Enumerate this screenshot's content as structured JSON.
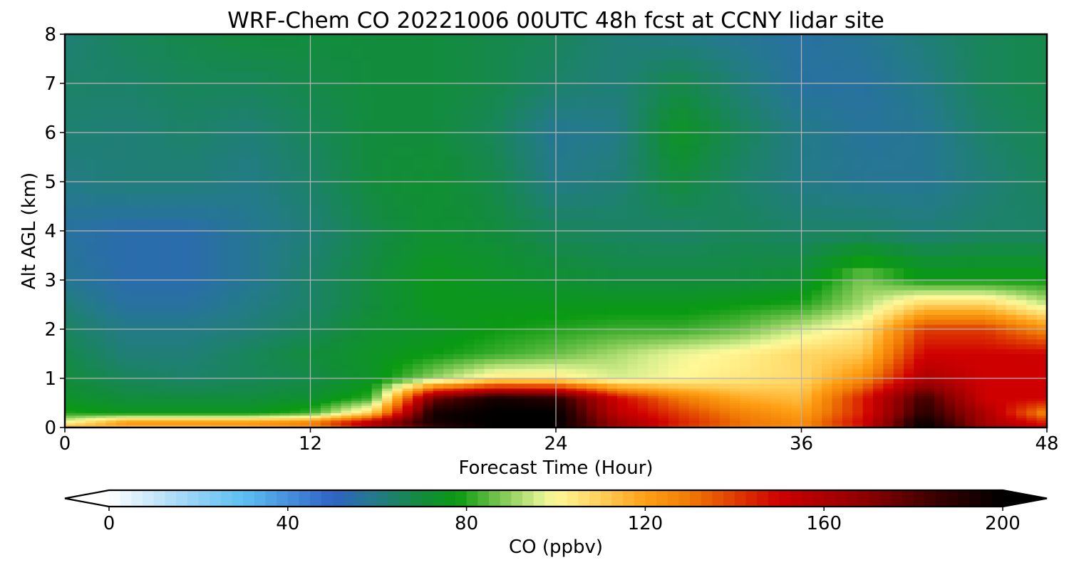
{
  "chart_data": {
    "type": "heatmap",
    "title": "WRF-Chem CO  20221006 00UTC 48h fcst at CCNY lidar site",
    "xlabel": "Forecast Time (Hour)",
    "ylabel": "Alt AGL (km)",
    "xlim": [
      0,
      48
    ],
    "ylim": [
      0,
      8
    ],
    "x_ticks": [
      0,
      12,
      24,
      36,
      48
    ],
    "x_tick_labels": [
      "0",
      "12",
      "24",
      "36",
      "48"
    ],
    "y_ticks": [
      0,
      1,
      2,
      3,
      4,
      5,
      6,
      7,
      8
    ],
    "y_tick_labels": [
      "0",
      "1",
      "2",
      "3",
      "4",
      "5",
      "6",
      "7",
      "8"
    ],
    "grid": true,
    "colorbar": {
      "label": "CO  (ppbv)",
      "range": [
        0,
        200
      ],
      "extend": "both",
      "ticks": [
        0,
        40,
        80,
        120,
        160,
        200
      ],
      "tick_labels": [
        "0",
        "40",
        "80",
        "120",
        "160",
        "200"
      ],
      "colormap": [
        {
          "value": 0,
          "color": "#ffffff"
        },
        {
          "value": 20,
          "color": "#8fd0f5"
        },
        {
          "value": 30,
          "color": "#5ec0f2"
        },
        {
          "value": 50,
          "color": "#2f63c6"
        },
        {
          "value": 60,
          "color": "#237b86"
        },
        {
          "value": 70,
          "color": "#128c3c"
        },
        {
          "value": 78,
          "color": "#0a9a12"
        },
        {
          "value": 88,
          "color": "#7ec853"
        },
        {
          "value": 96,
          "color": "#d8ef8d"
        },
        {
          "value": 100,
          "color": "#fff898"
        },
        {
          "value": 110,
          "color": "#ffd05a"
        },
        {
          "value": 120,
          "color": "#ffa015"
        },
        {
          "value": 130,
          "color": "#f07a05"
        },
        {
          "value": 140,
          "color": "#e03c00"
        },
        {
          "value": 150,
          "color": "#cf0000"
        },
        {
          "value": 170,
          "color": "#8a0000"
        },
        {
          "value": 185,
          "color": "#3a0000"
        },
        {
          "value": 200,
          "color": "#000000"
        }
      ]
    },
    "co_ppbv": {
      "hours": [
        0,
        3,
        6,
        9,
        12,
        15,
        18,
        21,
        24,
        27,
        30,
        33,
        36,
        39,
        42,
        45,
        48
      ],
      "altitudes_km": [
        0,
        0.1,
        0.3,
        0.6,
        1,
        1.5,
        2,
        2.5,
        3,
        4,
        5,
        6,
        7,
        8
      ],
      "values": [
        [
          120,
          110,
          110,
          112,
          118,
          150,
          180,
          200,
          200,
          160,
          140,
          128,
          122,
          145,
          200,
          165,
          150
        ],
        [
          100,
          125,
          125,
          125,
          130,
          160,
          195,
          200,
          200,
          165,
          145,
          132,
          125,
          150,
          200,
          162,
          145
        ],
        [
          80,
          76,
          76,
          76,
          82,
          110,
          195,
          200,
          200,
          155,
          140,
          128,
          120,
          145,
          190,
          160,
          125
        ],
        [
          73,
          70,
          70,
          70,
          72,
          82,
          175,
          195,
          190,
          150,
          130,
          118,
          114,
          145,
          185,
          150,
          150
        ],
        [
          70,
          66,
          64,
          66,
          68,
          74,
          90,
          104,
          104,
          96,
          100,
          104,
          108,
          125,
          160,
          150,
          150
        ],
        [
          68,
          62,
          62,
          66,
          70,
          74,
          78,
          82,
          86,
          92,
          98,
          102,
          108,
          112,
          150,
          150,
          150
        ],
        [
          65,
          60,
          60,
          62,
          66,
          72,
          74,
          78,
          80,
          82,
          82,
          86,
          95,
          104,
          140,
          140,
          125
        ],
        [
          62,
          56,
          56,
          60,
          64,
          70,
          76,
          76,
          76,
          76,
          76,
          78,
          80,
          92,
          110,
          110,
          95
        ],
        [
          58,
          54,
          54,
          58,
          64,
          70,
          76,
          74,
          72,
          70,
          70,
          70,
          72,
          88,
          78,
          78,
          78
        ],
        [
          56,
          54,
          54,
          58,
          62,
          68,
          72,
          70,
          66,
          65,
          64,
          66,
          64,
          64,
          62,
          64,
          64
        ],
        [
          60,
          62,
          62,
          60,
          64,
          70,
          72,
          68,
          60,
          62,
          70,
          64,
          60,
          58,
          58,
          62,
          66
        ],
        [
          63,
          62,
          64,
          62,
          66,
          70,
          70,
          66,
          58,
          60,
          74,
          66,
          60,
          57,
          58,
          64,
          67
        ],
        [
          64,
          64,
          66,
          66,
          68,
          70,
          70,
          68,
          64,
          62,
          68,
          62,
          56,
          56,
          60,
          66,
          68
        ],
        [
          62,
          66,
          68,
          70,
          70,
          70,
          70,
          68,
          66,
          62,
          60,
          58,
          56,
          58,
          62,
          66,
          68
        ]
      ]
    }
  }
}
